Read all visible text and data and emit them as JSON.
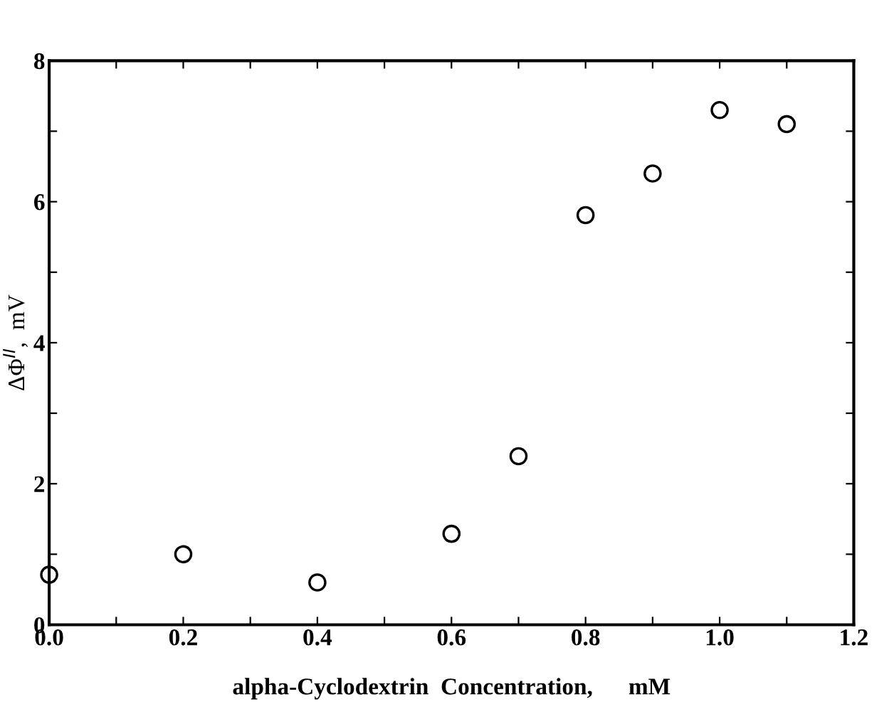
{
  "chart_data": {
    "type": "scatter",
    "xlabel": "alpha-Cyclodextrin  Concentration,      mM",
    "ylabel": "ΔΦ$^{II}$,  mV",
    "x": [
      0,
      0.2,
      0.4,
      0.6,
      0.7,
      0.8,
      0.9,
      1.0,
      1.1
    ],
    "values": [
      0.71,
      1.0,
      0.6,
      1.29,
      2.39,
      5.81,
      6.4,
      7.3,
      7.1
    ],
    "color": "#000000",
    "marker": "circle",
    "xlim": [
      0,
      1.2
    ],
    "ylim": [
      0,
      8
    ],
    "xticks": [
      {
        "value": 0,
        "label": "0.0"
      },
      {
        "value": 0.1,
        "label": null
      },
      {
        "value": 0.2,
        "label": "0.2"
      },
      {
        "value": 0.3,
        "label": null
      },
      {
        "value": 0.4,
        "label": "0.4"
      },
      {
        "value": 0.5,
        "label": null
      },
      {
        "value": 0.6,
        "label": "0.6"
      },
      {
        "value": 0.7,
        "label": null
      },
      {
        "value": 0.8,
        "label": "0.8"
      },
      {
        "value": 0.9,
        "label": null
      },
      {
        "value": 1.0,
        "label": "1.0"
      },
      {
        "value": 1.1,
        "label": null
      },
      {
        "value": 1.2,
        "label": "1.2"
      }
    ],
    "yticks": [
      0,
      {
        "value": 1,
        "label": null
      },
      2,
      {
        "value": 3,
        "label": null
      },
      4,
      {
        "value": 5,
        "label": null
      },
      6,
      {
        "value": 7,
        "label": null
      },
      8
    ],
    "grid": false,
    "legend": false
  }
}
